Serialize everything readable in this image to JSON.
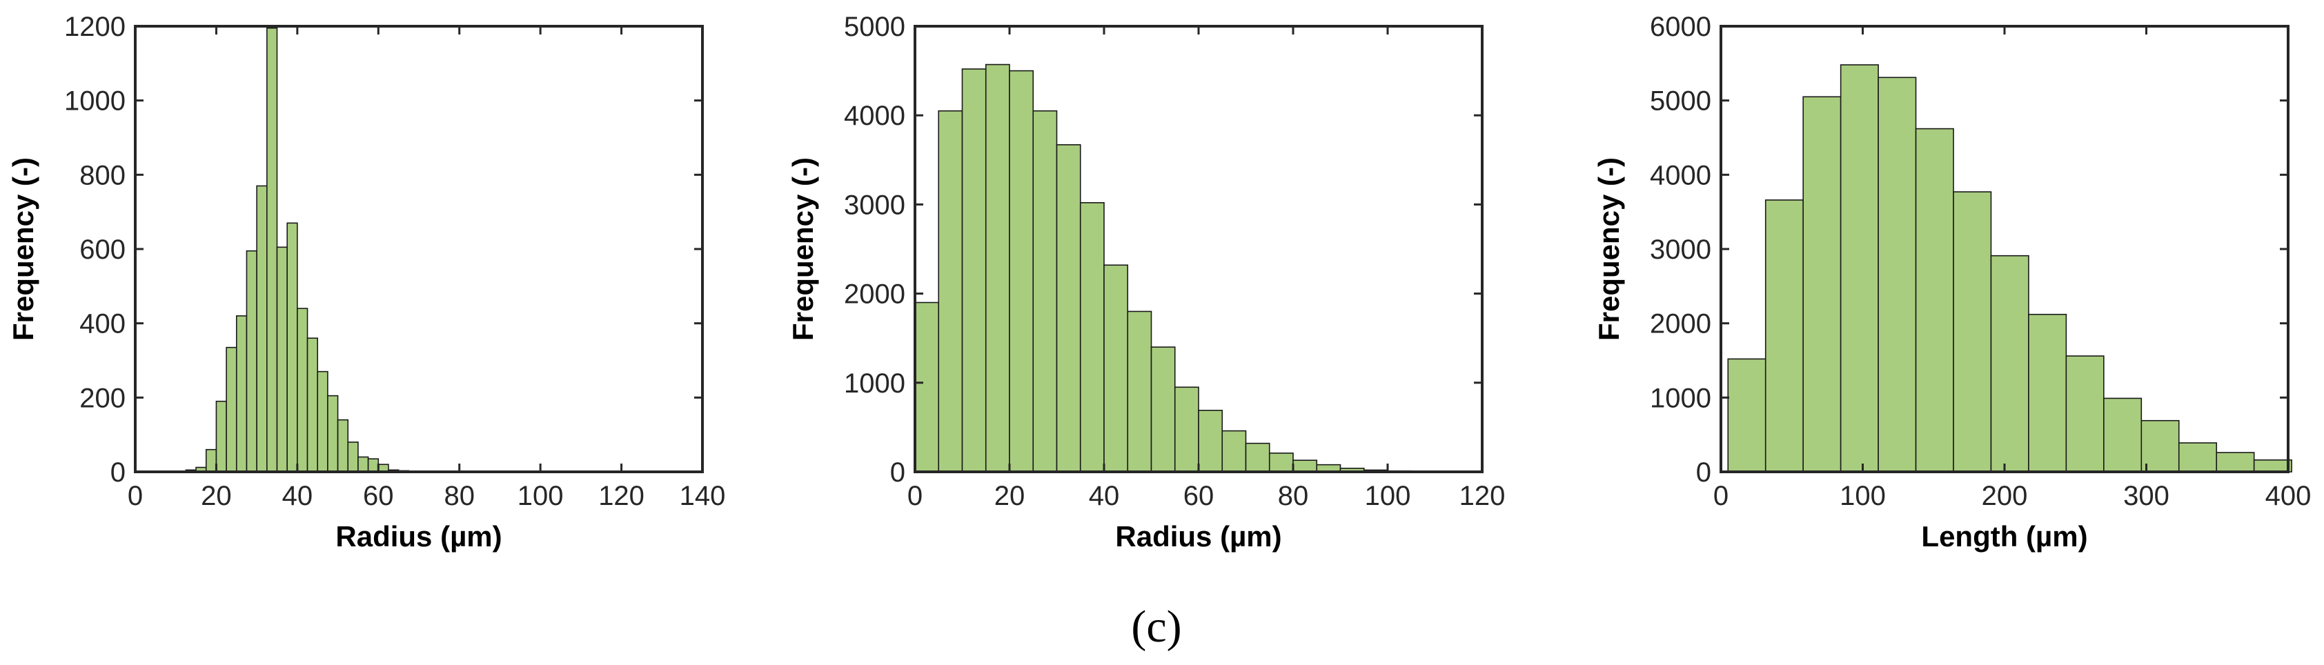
{
  "caption": "(c)",
  "colors": {
    "bar_fill": "#a9cd7f",
    "bar_edge": "#1a1a1a",
    "axis": "#262626"
  },
  "chart_data": [
    {
      "type": "bar",
      "title": "",
      "xlabel": "Radius (µm)",
      "ylabel": "Frequency (-)",
      "xlim": [
        0,
        140
      ],
      "ylim": [
        0,
        1200
      ],
      "xticks": [
        0,
        20,
        40,
        60,
        80,
        100,
        120,
        140
      ],
      "yticks": [
        0,
        200,
        400,
        600,
        800,
        1000,
        1200
      ],
      "bin_width": 2.5,
      "bin_edges_start": [
        12.5,
        15,
        17.5,
        20,
        22.5,
        25,
        27.5,
        30,
        32.5,
        35,
        37.5,
        40,
        42.5,
        45,
        47.5,
        50,
        52.5,
        55,
        57.5,
        60,
        62.5,
        65,
        67.5,
        70,
        72.5
      ],
      "values": [
        5,
        12,
        60,
        190,
        335,
        420,
        595,
        770,
        1195,
        605,
        670,
        440,
        360,
        270,
        205,
        140,
        80,
        40,
        35,
        20,
        5,
        3,
        2,
        1,
        1
      ],
      "grid": false
    },
    {
      "type": "bar",
      "title": "",
      "xlabel": "Radius (µm)",
      "ylabel": "Frequency (-)",
      "xlim": [
        0,
        120
      ],
      "ylim": [
        0,
        5000
      ],
      "xticks": [
        0,
        20,
        40,
        60,
        80,
        100,
        120
      ],
      "yticks": [
        0,
        1000,
        2000,
        3000,
        4000,
        5000
      ],
      "bin_width": 5,
      "bin_edges_start": [
        0,
        5,
        10,
        15,
        20,
        25,
        30,
        35,
        40,
        45,
        50,
        55,
        60,
        65,
        70,
        75,
        80,
        85,
        90,
        95,
        100,
        105,
        110,
        115
      ],
      "values": [
        1900,
        4050,
        4520,
        4570,
        4500,
        4050,
        3670,
        3020,
        2320,
        1800,
        1400,
        950,
        690,
        460,
        320,
        210,
        130,
        80,
        40,
        20,
        10,
        5,
        3,
        2
      ],
      "grid": false
    },
    {
      "type": "bar",
      "title": "",
      "xlabel": "Length (µm)",
      "ylabel": "Frequency (-)",
      "xlim": [
        0,
        400
      ],
      "ylim": [
        0,
        6000
      ],
      "xticks": [
        0,
        100,
        200,
        300,
        400
      ],
      "yticks": [
        0,
        1000,
        2000,
        3000,
        4000,
        5000,
        6000
      ],
      "bin_width": 26.5,
      "bin_edges_start": [
        5,
        31.5,
        58,
        84.5,
        111,
        137.5,
        164,
        190.5,
        217,
        243.5,
        270,
        296.5,
        323,
        349.5,
        376
      ],
      "values": [
        1520,
        3660,
        5050,
        5480,
        5310,
        4620,
        3770,
        2910,
        2120,
        1560,
        990,
        690,
        390,
        260,
        160
      ],
      "grid": false
    }
  ]
}
